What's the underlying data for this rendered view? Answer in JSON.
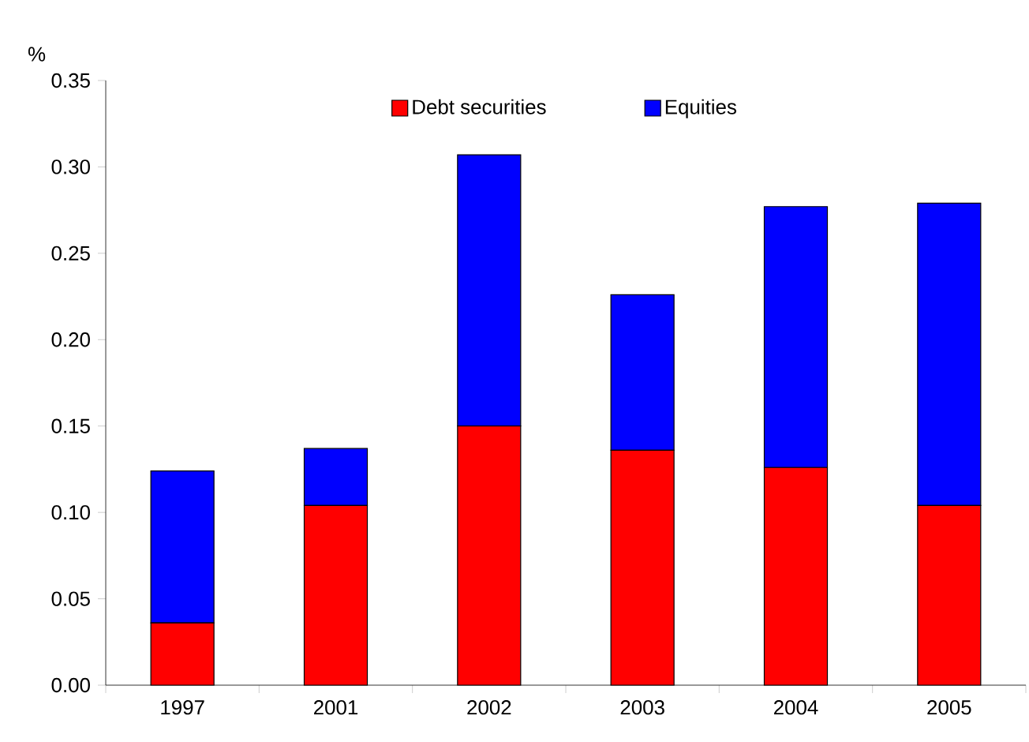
{
  "chart_data": {
    "type": "bar",
    "stacked": true,
    "ylabel": "%",
    "categories": [
      "1997",
      "2001",
      "2002",
      "2003",
      "2004",
      "2005"
    ],
    "series": [
      {
        "name": "Debt securities",
        "color": "#ff0000",
        "values": [
          0.036,
          0.104,
          0.15,
          0.136,
          0.126,
          0.104
        ]
      },
      {
        "name": "Equities",
        "color": "#0000ff",
        "values": [
          0.088,
          0.033,
          0.157,
          0.09,
          0.151,
          0.175
        ]
      }
    ],
    "ylim": [
      0,
      0.35
    ],
    "yticks": [
      {
        "value": 0,
        "label": "0.00"
      },
      {
        "value": 0.05,
        "label": "0.05"
      },
      {
        "value": 0.1,
        "label": "0.10"
      },
      {
        "value": 0.15,
        "label": "0.15"
      },
      {
        "value": 0.2,
        "label": "0.20"
      },
      {
        "value": 0.25,
        "label": "0.25"
      },
      {
        "value": 0.3,
        "label": "0.30"
      },
      {
        "value": 0.35,
        "label": "0.35"
      }
    ],
    "grid": false,
    "legend": "top"
  }
}
